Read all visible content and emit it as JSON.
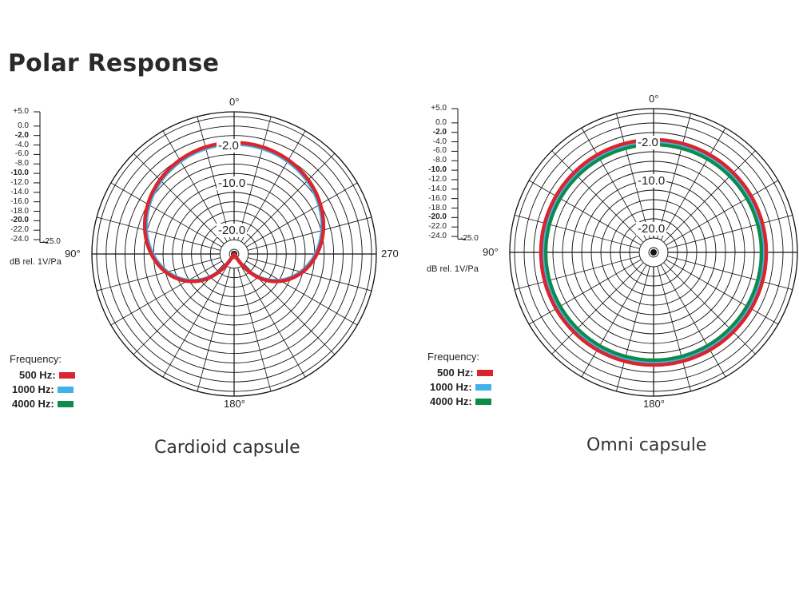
{
  "page_title": "Polar Response",
  "legend_title": "Frequency:",
  "scale_unit": "dB rel. 1V/Pa",
  "scale_min_label": "-25.0",
  "scale_ticks": [
    {
      "label": "+5.0",
      "bold": false
    },
    {
      "label": "0.0",
      "bold": false
    },
    {
      "label": "-2.0",
      "bold": true
    },
    {
      "label": "-4.0",
      "bold": false
    },
    {
      "label": "-6.0",
      "bold": false
    },
    {
      "label": "-8.0",
      "bold": false
    },
    {
      "label": "-10.0",
      "bold": true
    },
    {
      "label": "-12.0",
      "bold": false
    },
    {
      "label": "-14.0",
      "bold": false
    },
    {
      "label": "-16.0",
      "bold": false
    },
    {
      "label": "-18.0",
      "bold": false
    },
    {
      "label": "-20.0",
      "bold": true
    },
    {
      "label": "-22.0",
      "bold": false
    },
    {
      "label": "-24.0",
      "bold": false
    }
  ],
  "colors": {
    "500hz": "#d9262e",
    "1000hz": "#3fb2e6",
    "4000hz": "#0e8a4a"
  },
  "chart_data": [
    {
      "type": "polar",
      "title": "Cardioid capsule",
      "angle_labels": {
        "top": "0°",
        "left": "90°",
        "right": "270",
        "bottom": "180°"
      },
      "ring_labels": [
        "-2.0",
        "-10.0",
        "-20.0"
      ],
      "r_range_db": [
        -25,
        5
      ],
      "legend": [
        {
          "name": "500 Hz:",
          "color": "#d9262e"
        },
        {
          "name": "1000 Hz:",
          "color": "#3fb2e6"
        },
        {
          "name": "4000 Hz:",
          "color": "#0e8a4a"
        }
      ],
      "series": [
        {
          "name": "1000 Hz",
          "color": "#3fb2e6",
          "pattern": "cardioid",
          "level_db": -1.8
        },
        {
          "name": "500 Hz",
          "color": "#d9262e",
          "pattern": "cardioid",
          "level_db": -1.5
        }
      ]
    },
    {
      "type": "polar",
      "title": "Omni capsule",
      "angle_labels": {
        "top": "0°",
        "left": "90°",
        "bottom": "180°"
      },
      "ring_labels": [
        "-2.0",
        "-10.0",
        "-20.0"
      ],
      "r_range_db": [
        -25,
        5
      ],
      "legend": [
        {
          "name": "500 Hz:",
          "color": "#d9262e"
        },
        {
          "name": "1000 Hz:",
          "color": "#3fb2e6"
        },
        {
          "name": "4000 Hz:",
          "color": "#0e8a4a"
        }
      ],
      "series": [
        {
          "name": "4000 Hz",
          "color": "#0e8a4a",
          "pattern": "omni",
          "level_db": -2.5
        },
        {
          "name": "1000 Hz",
          "color": "#3fb2e6",
          "pattern": "omni",
          "level_db": -1.8
        },
        {
          "name": "500 Hz",
          "color": "#d9262e",
          "pattern": "omni",
          "level_db": -1.5
        }
      ]
    }
  ]
}
